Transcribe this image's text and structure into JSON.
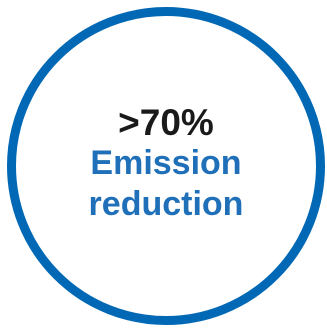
{
  "badge": {
    "value": ">70%",
    "label_line1": "Emission",
    "label_line2": "reduction"
  },
  "colors": {
    "ring": "#0068b4",
    "value_text": "#1a1a1a",
    "label_text": "#1f70b8",
    "background": "#ffffff"
  }
}
